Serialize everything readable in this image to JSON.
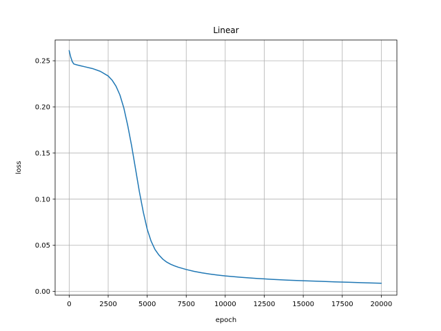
{
  "chart_data": {
    "type": "line",
    "title": "Linear",
    "xlabel": "epoch",
    "ylabel": "loss",
    "xlim": [
      -900,
      21000
    ],
    "ylim": [
      -0.004,
      0.2725
    ],
    "grid": true,
    "legend": "none",
    "line_color": "#1f77b4",
    "grid_color": "#b0b0b0",
    "x_ticks": [
      0,
      2500,
      5000,
      7500,
      10000,
      12500,
      15000,
      17500,
      20000
    ],
    "x_tick_labels": [
      "0",
      "2500",
      "5000",
      "7500",
      "10000",
      "12500",
      "15000",
      "17500",
      "20000"
    ],
    "y_ticks": [
      0.0,
      0.05,
      0.1,
      0.15,
      0.2,
      0.25
    ],
    "y_tick_labels": [
      "0.00",
      "0.05",
      "0.10",
      "0.15",
      "0.20",
      "0.25"
    ],
    "series": [
      {
        "x": [
          0,
          100,
          200,
          300,
          500,
          750,
          1000,
          1500,
          2000,
          2500,
          2750,
          3000,
          3250,
          3500,
          3750,
          4000,
          4250,
          4500,
          4750,
          5000,
          5250,
          5500,
          5750,
          6000,
          6250,
          6500,
          6750,
          7000,
          7500,
          8000,
          8500,
          9000,
          9500,
          10000,
          11000,
          12000,
          13000,
          14000,
          15000,
          16000,
          17000,
          18000,
          19000,
          20000
        ],
        "y": [
          0.261,
          0.254,
          0.249,
          0.2465,
          0.2455,
          0.2445,
          0.2435,
          0.2415,
          0.2385,
          0.2335,
          0.229,
          0.2225,
          0.213,
          0.199,
          0.18,
          0.158,
          0.133,
          0.108,
          0.086,
          0.0675,
          0.0545,
          0.0455,
          0.0395,
          0.035,
          0.0318,
          0.0295,
          0.0277,
          0.0262,
          0.0238,
          0.0218,
          0.0202,
          0.0189,
          0.0178,
          0.0168,
          0.0153,
          0.0141,
          0.0131,
          0.0123,
          0.0116,
          0.011,
          0.0104,
          0.0099,
          0.0094,
          0.0089
        ]
      }
    ]
  }
}
